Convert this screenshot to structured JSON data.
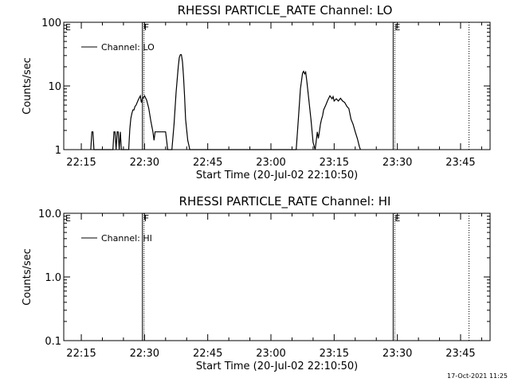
{
  "footer": {
    "timestamp": "17-Oct-2021 11:25"
  },
  "chart_data": [
    {
      "type": "line",
      "title": "RHESSI PARTICLE_RATE Channel: LO",
      "xlabel": "Start Time (20-Jul-02 22:10:50)",
      "ylabel": "Counts/sec",
      "yscale": "log",
      "ylim": [
        1,
        100
      ],
      "xlim": [
        "22:10:50",
        "23:52:00"
      ],
      "x_ticks": [
        "22:15",
        "22:30",
        "22:45",
        "23:00",
        "23:15",
        "23:30",
        "23:45"
      ],
      "y_ticks": [
        "1",
        "10",
        "100"
      ],
      "legend": "top-left",
      "series": [
        {
          "name": "Channel: LO",
          "x": [
            "22:17:15",
            "22:17:30",
            "22:17:45",
            "22:18:00",
            "22:22:30",
            "22:22:45",
            "22:23:00",
            "22:23:15",
            "22:23:30",
            "22:23:45",
            "22:24:00",
            "22:24:15",
            "22:24:30",
            "22:26:15",
            "22:26:30",
            "22:26:45",
            "22:27:00",
            "22:27:15",
            "22:27:30",
            "22:27:45",
            "22:28:00",
            "22:28:30",
            "22:29:00",
            "22:29:15",
            "22:29:30",
            "22:30:00",
            "22:30:30",
            "22:31:00",
            "22:31:30",
            "22:32:00",
            "22:32:15",
            "22:32:30",
            "22:33:00",
            "22:33:15",
            "22:34:00",
            "22:35:00",
            "22:35:15",
            "22:35:30",
            "22:36:30",
            "22:37:00",
            "22:37:30",
            "22:38:00",
            "22:38:15",
            "22:38:30",
            "22:38:45",
            "22:39:00",
            "22:39:15",
            "22:39:30",
            "22:39:45",
            "22:40:15",
            "22:40:45",
            "22:41:00",
            "23:06:00",
            "23:06:30",
            "23:07:00",
            "23:07:30",
            "23:07:45",
            "23:08:00",
            "23:08:15",
            "23:08:30",
            "23:09:00",
            "23:09:30",
            "23:10:00",
            "23:10:30",
            "23:11:00",
            "23:11:15",
            "23:11:30",
            "23:11:45",
            "23:12:00",
            "23:12:15",
            "23:12:30",
            "23:13:00",
            "23:13:30",
            "23:14:00",
            "23:14:30",
            "23:14:45",
            "23:15:00",
            "23:15:30",
            "23:16:00",
            "23:16:30",
            "23:17:00",
            "23:17:30",
            "23:18:00",
            "23:18:30",
            "23:19:00",
            "23:19:30",
            "23:20:00",
            "23:20:30",
            "23:21:00",
            "23:21:15"
          ],
          "values": [
            1,
            1.9,
            1.9,
            1,
            1,
            1.9,
            1.9,
            1,
            1.9,
            1.9,
            1,
            1.9,
            1,
            1,
            2.1,
            3.1,
            3.7,
            4.2,
            4.2,
            4.8,
            5.0,
            6.0,
            7.0,
            5.5,
            6.3,
            7.0,
            6.0,
            4.5,
            2.8,
            1.9,
            1.4,
            1.9,
            1.9,
            1.9,
            1.9,
            1.9,
            1.4,
            1,
            1,
            2.5,
            8,
            20,
            28,
            31,
            31,
            24,
            14,
            7,
            3,
            1.4,
            1,
            1,
            1,
            3,
            9,
            16,
            17,
            15.5,
            16.5,
            12,
            6,
            3,
            1.3,
            1,
            1.9,
            1.5,
            1.9,
            2.5,
            3.0,
            3.4,
            4.2,
            5.0,
            6.0,
            7.0,
            6.3,
            6.8,
            5.8,
            6.3,
            5.8,
            6.4,
            5.8,
            5.5,
            4.8,
            4.4,
            3.0,
            2.5,
            1.9,
            1.5,
            1.1,
            1
          ]
        }
      ],
      "annotations": [
        {
          "label": "E",
          "x": "22:10:50",
          "style": "solid"
        },
        {
          "label": "F",
          "x": "22:29:30",
          "style": "solid"
        },
        {
          "label": "E",
          "x": "23:29:00",
          "style": "solid"
        },
        {
          "label": "",
          "x": "23:47:00",
          "style": "dotted"
        }
      ]
    },
    {
      "type": "line",
      "title": "RHESSI PARTICLE_RATE Channel: HI",
      "xlabel": "Start Time (20-Jul-02 22:10:50)",
      "ylabel": "Counts/sec",
      "yscale": "log",
      "ylim": [
        0.1,
        10
      ],
      "xlim": [
        "22:10:50",
        "23:52:00"
      ],
      "x_ticks": [
        "22:15",
        "22:30",
        "22:45",
        "23:00",
        "23:15",
        "23:30",
        "23:45"
      ],
      "y_ticks": [
        "0.1",
        "1.0",
        "10.0"
      ],
      "legend": "top-left",
      "series": [
        {
          "name": "Channel: HI",
          "x": [],
          "values": []
        }
      ],
      "annotations": [
        {
          "label": "E",
          "x": "22:10:50",
          "style": "solid"
        },
        {
          "label": "F",
          "x": "22:29:30",
          "style": "solid"
        },
        {
          "label": "E",
          "x": "23:29:00",
          "style": "solid"
        },
        {
          "label": "",
          "x": "23:47:00",
          "style": "dotted"
        }
      ]
    }
  ]
}
